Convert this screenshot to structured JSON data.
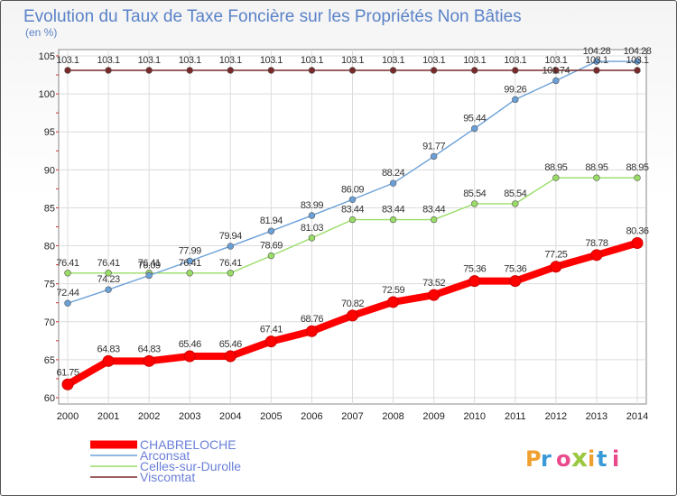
{
  "chart_data": {
    "type": "line",
    "title": "Evolution du Taux de Taxe Foncière sur les Propriétés Non Bâties",
    "subtitle": "(en %)",
    "x": [
      "2000",
      "2001",
      "2002",
      "2003",
      "2004",
      "2005",
      "2006",
      "2007",
      "2008",
      "2009",
      "2010",
      "2011",
      "2012",
      "2013",
      "2014"
    ],
    "ylim": [
      60,
      105
    ],
    "yticks": [
      60,
      65,
      70,
      75,
      80,
      85,
      90,
      95,
      100,
      105
    ],
    "grid": true,
    "legend_position": "bottom-left",
    "series": [
      {
        "name": "CHABRELOCHE",
        "color": "#ff0000",
        "values": [
          61.75,
          64.83,
          64.83,
          65.46,
          65.46,
          67.41,
          68.76,
          70.82,
          72.59,
          73.52,
          75.36,
          75.36,
          77.25,
          78.78,
          80.36
        ],
        "labels": [
          "61.75",
          "64.83",
          "64.83",
          "65.46",
          "65.46",
          "67.41",
          "68.76",
          "70.82",
          "72.59",
          "73.52",
          "75.36",
          "75.36",
          "77.25",
          "78.78",
          "80.36"
        ]
      },
      {
        "name": "Arconsat",
        "color": "#6aa0d8",
        "values": [
          72.44,
          74.23,
          76.09,
          77.99,
          79.94,
          81.94,
          83.99,
          86.09,
          88.24,
          91.77,
          95.44,
          99.26,
          101.74,
          104.28,
          104.28
        ],
        "labels": [
          "72.44",
          "74.23",
          "76.09",
          "77.99",
          "79.94",
          "81.94",
          "83.99",
          "86.09",
          "88.24",
          "91.77",
          "95.44",
          "99.26",
          "101.74",
          "104.28",
          "104.28"
        ]
      },
      {
        "name": "Celles-sur-Durolle",
        "color": "#99dd66",
        "values": [
          76.41,
          76.41,
          76.41,
          76.41,
          76.41,
          78.69,
          81.03,
          83.44,
          83.44,
          83.44,
          85.54,
          85.54,
          88.95,
          88.95,
          88.95
        ],
        "labels": [
          "76.41",
          "76.41",
          "76.41",
          "76.41",
          "76.41",
          "78.69",
          "81.03",
          "83.44",
          "83.44",
          "83.44",
          "85.54",
          "85.54",
          "88.95",
          "88.95",
          "88.95"
        ]
      },
      {
        "name": "Viscomtat",
        "color": "#7a2a2a",
        "values": [
          103.1,
          103.1,
          103.1,
          103.1,
          103.1,
          103.1,
          103.1,
          103.1,
          103.1,
          103.1,
          103.1,
          103.1,
          103.1,
          103.1,
          103.1
        ],
        "labels": [
          "103.1",
          "103.1",
          "103.1",
          "103.1",
          "103.1",
          "103.1",
          "103.1",
          "103.1",
          "103.1",
          "103.1",
          "103.1",
          "103.1",
          "103.1",
          "103.1",
          "103.1"
        ]
      }
    ]
  },
  "logo": {
    "text": "Proxiti",
    "colors": [
      "#f0a030",
      "#3a9ad8",
      "#e84a8a",
      "#9ac840"
    ]
  }
}
